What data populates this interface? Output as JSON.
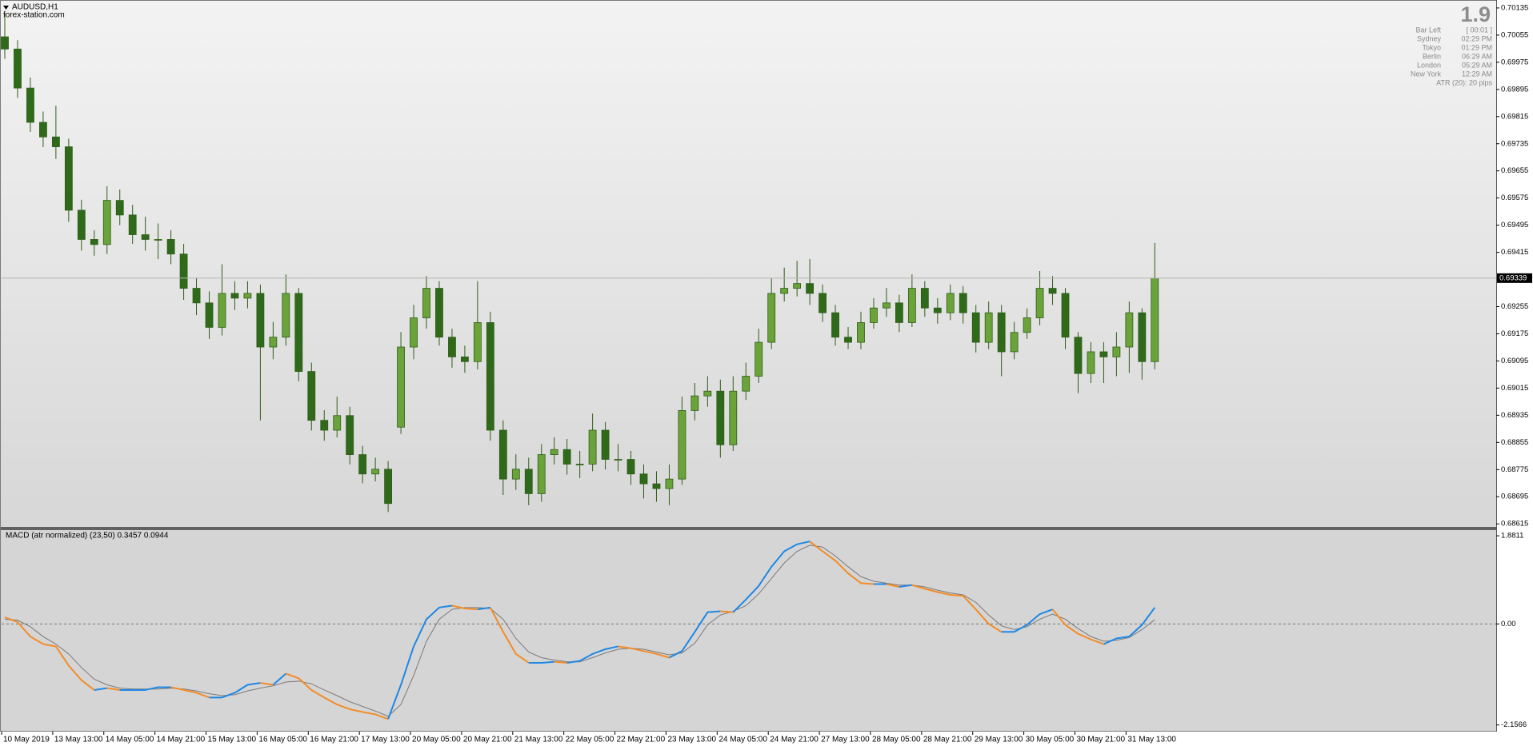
{
  "header": {
    "symbol": "AUDUSD,H1",
    "site": "forex-station.com"
  },
  "info_panel": {
    "spread": "1.9",
    "rows": [
      [
        "Bar Left",
        "[ 00:01 ]"
      ],
      [
        "Sydney",
        "02:29 PM"
      ],
      [
        "Tokyo",
        "01:29 PM"
      ],
      [
        "Berlin",
        "06:29 AM"
      ],
      [
        "London",
        "05:29 AM"
      ],
      [
        "New York",
        "12:29 AM"
      ]
    ],
    "atr": "ATR (20): 20 pips"
  },
  "chart_data": [
    {
      "type": "candlestick",
      "categories": [
        "10 May 2019",
        null,
        null,
        null,
        "13 May 13:00",
        null,
        null,
        null,
        "14 May 05:00",
        null,
        null,
        null,
        "14 May 21:00",
        null,
        null,
        null,
        "15 May 13:00",
        null,
        null,
        null,
        "16 May 05:00",
        null,
        null,
        null,
        "16 May 21:00",
        null,
        null,
        null,
        "17 May 13:00",
        null,
        null,
        null,
        "20 May 05:00",
        null,
        null,
        null,
        "20 May 21:00",
        null,
        null,
        null,
        "21 May 13:00",
        null,
        null,
        null,
        "22 May 05:00",
        null,
        null,
        null,
        "22 May 21:00",
        null,
        null,
        null,
        "23 May 13:00",
        null,
        null,
        null,
        "24 May 05:00",
        null,
        null,
        null,
        "24 May 21:00",
        null,
        null,
        null,
        "27 May 13:00",
        null,
        null,
        null,
        "28 May 05:00",
        null,
        null,
        null,
        "28 May 21:00",
        null,
        null,
        null,
        "29 May 13:00",
        null,
        null,
        null,
        "30 May 05:00",
        null,
        null,
        null,
        "30 May 21:00",
        null,
        null,
        null,
        "31 May 13:00",
        null,
        null
      ],
      "ohlc": [
        [
          0.7005,
          0.7012,
          0.69985,
          0.70014
        ],
        [
          0.70014,
          0.7004,
          0.6987,
          0.69899
        ],
        [
          0.69899,
          0.6993,
          0.6977,
          0.69798
        ],
        [
          0.69798,
          0.6983,
          0.69725,
          0.69755
        ],
        [
          0.69755,
          0.69847,
          0.6969,
          0.69726
        ],
        [
          0.69726,
          0.6975,
          0.69505,
          0.69539
        ],
        [
          0.69539,
          0.6957,
          0.6942,
          0.69453
        ],
        [
          0.69453,
          0.6948,
          0.69405,
          0.69438
        ],
        [
          0.69438,
          0.6961,
          0.6941,
          0.69568
        ],
        [
          0.69568,
          0.696,
          0.69495,
          0.69525
        ],
        [
          0.69525,
          0.69555,
          0.6944,
          0.69467
        ],
        [
          0.69467,
          0.6952,
          0.6942,
          0.69453
        ],
        [
          0.69453,
          0.695,
          0.69395,
          0.69453
        ],
        [
          0.69453,
          0.6948,
          0.6938,
          0.6941
        ],
        [
          0.6941,
          0.6944,
          0.69275,
          0.69309
        ],
        [
          0.69309,
          0.6934,
          0.6923,
          0.69266
        ],
        [
          0.69266,
          0.693,
          0.6916,
          0.69194
        ],
        [
          0.69194,
          0.6938,
          0.6917,
          0.69294
        ],
        [
          0.69294,
          0.6933,
          0.69245,
          0.6928
        ],
        [
          0.6928,
          0.6933,
          0.6925,
          0.69294
        ],
        [
          0.69294,
          0.6932,
          0.6892,
          0.69136
        ],
        [
          0.69136,
          0.6921,
          0.691,
          0.69165
        ],
        [
          0.69165,
          0.6935,
          0.6914,
          0.69294
        ],
        [
          0.69294,
          0.6931,
          0.69035,
          0.69064
        ],
        [
          0.69064,
          0.6909,
          0.6889,
          0.6892
        ],
        [
          0.6892,
          0.6895,
          0.6886,
          0.68891
        ],
        [
          0.68891,
          0.6899,
          0.6887,
          0.68934
        ],
        [
          0.68934,
          0.6896,
          0.6879,
          0.68819
        ],
        [
          0.68819,
          0.68845,
          0.68735,
          0.68762
        ],
        [
          0.68762,
          0.6881,
          0.6874,
          0.68776
        ],
        [
          0.68776,
          0.688,
          0.6865,
          0.68675
        ],
        [
          0.689,
          0.6918,
          0.6888,
          0.69136
        ],
        [
          0.69136,
          0.6926,
          0.691,
          0.69222
        ],
        [
          0.69222,
          0.69345,
          0.6919,
          0.69309
        ],
        [
          0.69309,
          0.6933,
          0.6914,
          0.69165
        ],
        [
          0.69165,
          0.6919,
          0.69075,
          0.69107
        ],
        [
          0.69107,
          0.6914,
          0.6906,
          0.69093
        ],
        [
          0.69093,
          0.6933,
          0.6907,
          0.69208
        ],
        [
          0.69208,
          0.6924,
          0.6886,
          0.68891
        ],
        [
          0.68891,
          0.6892,
          0.687,
          0.68747
        ],
        [
          0.68747,
          0.6882,
          0.68715,
          0.68776
        ],
        [
          0.68776,
          0.6881,
          0.6867,
          0.68704
        ],
        [
          0.68704,
          0.6885,
          0.6868,
          0.68819
        ],
        [
          0.68819,
          0.6887,
          0.6879,
          0.68834
        ],
        [
          0.68834,
          0.68865,
          0.6876,
          0.68791
        ],
        [
          0.68791,
          0.6883,
          0.6875,
          0.68791
        ],
        [
          0.68791,
          0.6894,
          0.6877,
          0.68891
        ],
        [
          0.68891,
          0.68915,
          0.68775,
          0.68805
        ],
        [
          0.68805,
          0.6885,
          0.6877,
          0.68805
        ],
        [
          0.68805,
          0.6883,
          0.6873,
          0.68762
        ],
        [
          0.68762,
          0.6879,
          0.6869,
          0.68733
        ],
        [
          0.68733,
          0.6877,
          0.6868,
          0.68719
        ],
        [
          0.68719,
          0.6879,
          0.6867,
          0.68747
        ],
        [
          0.68747,
          0.6899,
          0.6873,
          0.68949
        ],
        [
          0.68949,
          0.6903,
          0.6892,
          0.68992
        ],
        [
          0.68992,
          0.6905,
          0.6896,
          0.69006
        ],
        [
          0.69006,
          0.6904,
          0.6881,
          0.68848
        ],
        [
          0.68848,
          0.6905,
          0.6883,
          0.69006
        ],
        [
          0.69006,
          0.6909,
          0.6898,
          0.6905
        ],
        [
          0.6905,
          0.6919,
          0.6903,
          0.6915
        ],
        [
          0.6915,
          0.6934,
          0.6913,
          0.69294
        ],
        [
          0.69294,
          0.6937,
          0.6927,
          0.69309
        ],
        [
          0.69309,
          0.6939,
          0.69285,
          0.69323
        ],
        [
          0.69323,
          0.69395,
          0.6926,
          0.69294
        ],
        [
          0.69294,
          0.6932,
          0.6921,
          0.69237
        ],
        [
          0.69237,
          0.6926,
          0.6914,
          0.69165
        ],
        [
          0.69165,
          0.69195,
          0.6913,
          0.6915
        ],
        [
          0.6915,
          0.6924,
          0.6913,
          0.69208
        ],
        [
          0.69208,
          0.6928,
          0.6919,
          0.69251
        ],
        [
          0.69251,
          0.6931,
          0.69225,
          0.69266
        ],
        [
          0.69266,
          0.6929,
          0.6918,
          0.69208
        ],
        [
          0.69208,
          0.6935,
          0.69195,
          0.69309
        ],
        [
          0.69309,
          0.6933,
          0.69225,
          0.69251
        ],
        [
          0.69251,
          0.6928,
          0.69205,
          0.69237
        ],
        [
          0.69237,
          0.6932,
          0.69215,
          0.69294
        ],
        [
          0.69294,
          0.69315,
          0.69205,
          0.69237
        ],
        [
          0.69237,
          0.6926,
          0.6912,
          0.6915
        ],
        [
          0.6915,
          0.6927,
          0.6913,
          0.69237
        ],
        [
          0.69237,
          0.6926,
          0.6905,
          0.69122
        ],
        [
          0.69122,
          0.6921,
          0.691,
          0.69179
        ],
        [
          0.69179,
          0.6925,
          0.6916,
          0.69222
        ],
        [
          0.69222,
          0.6936,
          0.692,
          0.69309
        ],
        [
          0.69309,
          0.69345,
          0.6926,
          0.69294
        ],
        [
          0.69294,
          0.6931,
          0.6913,
          0.69165
        ],
        [
          0.69165,
          0.6918,
          0.69,
          0.69058
        ],
        [
          0.69058,
          0.6915,
          0.6903,
          0.69122
        ],
        [
          0.69122,
          0.6915,
          0.6903,
          0.69107
        ],
        [
          0.69107,
          0.6918,
          0.6905,
          0.69136
        ],
        [
          0.69136,
          0.6927,
          0.6906,
          0.69237
        ],
        [
          0.69237,
          0.6925,
          0.6904,
          0.69093
        ],
        [
          0.69093,
          0.69443,
          0.6907,
          0.69339
        ]
      ],
      "bull_color": "#6aa33a",
      "bear_color": "#2f6a1a",
      "wick_color": "#2f5d17",
      "ylim": [
        0.68606,
        0.70149
      ],
      "yticks": [
        0.68615,
        0.68695,
        0.68775,
        0.68855,
        0.68935,
        0.69015,
        0.69095,
        0.69175,
        0.69255,
        0.69415,
        0.69495,
        0.69575,
        0.69655,
        0.69735,
        0.69815,
        0.69895,
        0.69975,
        0.70055,
        0.70135
      ],
      "current_price": 0.69339,
      "grid": false
    },
    {
      "type": "macd",
      "title": "MACD (atr normalized) (23,50) 0.3457 0.0944",
      "macd": {
        "rising_color": "#1e88e5",
        "falling_color": "#f28c28",
        "values": [
          0.14,
          0.04,
          -0.27,
          -0.43,
          -0.48,
          -0.89,
          -1.2,
          -1.41,
          -1.37,
          -1.41,
          -1.41,
          -1.41,
          -1.35,
          -1.35,
          -1.41,
          -1.47,
          -1.57,
          -1.57,
          -1.47,
          -1.3,
          -1.26,
          -1.3,
          -1.06,
          -1.16,
          -1.41,
          -1.57,
          -1.72,
          -1.82,
          -1.88,
          -1.93,
          -2.03,
          -1.3,
          -0.48,
          0.1,
          0.35,
          0.39,
          0.33,
          0.31,
          0.35,
          -0.17,
          -0.64,
          -0.83,
          -0.83,
          -0.81,
          -0.83,
          -0.79,
          -0.64,
          -0.54,
          -0.48,
          -0.52,
          -0.58,
          -0.64,
          -0.72,
          -0.58,
          -0.17,
          0.25,
          0.27,
          0.25,
          0.52,
          0.81,
          1.22,
          1.55,
          1.7,
          1.76,
          1.55,
          1.35,
          1.08,
          0.87,
          0.85,
          0.85,
          0.79,
          0.83,
          0.75,
          0.68,
          0.62,
          0.6,
          0.31,
          0.0,
          -0.17,
          -0.17,
          -0.02,
          0.21,
          0.31,
          -0.02,
          -0.21,
          -0.33,
          -0.43,
          -0.31,
          -0.27,
          -0.02,
          0.35
        ]
      },
      "signal": {
        "color": "#7a7a7a",
        "values": [
          0.1,
          0.08,
          -0.06,
          -0.27,
          -0.43,
          -0.64,
          -0.93,
          -1.18,
          -1.3,
          -1.37,
          -1.39,
          -1.39,
          -1.39,
          -1.37,
          -1.39,
          -1.43,
          -1.49,
          -1.53,
          -1.51,
          -1.43,
          -1.37,
          -1.32,
          -1.24,
          -1.22,
          -1.28,
          -1.41,
          -1.53,
          -1.66,
          -1.76,
          -1.86,
          -1.97,
          -1.72,
          -1.1,
          -0.37,
          0.1,
          0.31,
          0.35,
          0.35,
          0.33,
          0.1,
          -0.31,
          -0.6,
          -0.72,
          -0.77,
          -0.81,
          -0.81,
          -0.72,
          -0.62,
          -0.54,
          -0.52,
          -0.54,
          -0.6,
          -0.66,
          -0.62,
          -0.41,
          -0.02,
          0.19,
          0.27,
          0.39,
          0.64,
          0.97,
          1.3,
          1.55,
          1.68,
          1.64,
          1.45,
          1.22,
          1.01,
          0.91,
          0.87,
          0.83,
          0.83,
          0.79,
          0.72,
          0.66,
          0.62,
          0.46,
          0.19,
          -0.04,
          -0.12,
          -0.06,
          0.1,
          0.21,
          0.1,
          -0.1,
          -0.27,
          -0.37,
          -0.35,
          -0.29,
          -0.12,
          0.09
        ]
      },
      "ylim": [
        -2.281,
        1.985
      ],
      "yticks": [
        1.8811,
        {
          "value": 0,
          "label": "0.00"
        },
        -2.1566
      ],
      "zero_line": true
    }
  ]
}
